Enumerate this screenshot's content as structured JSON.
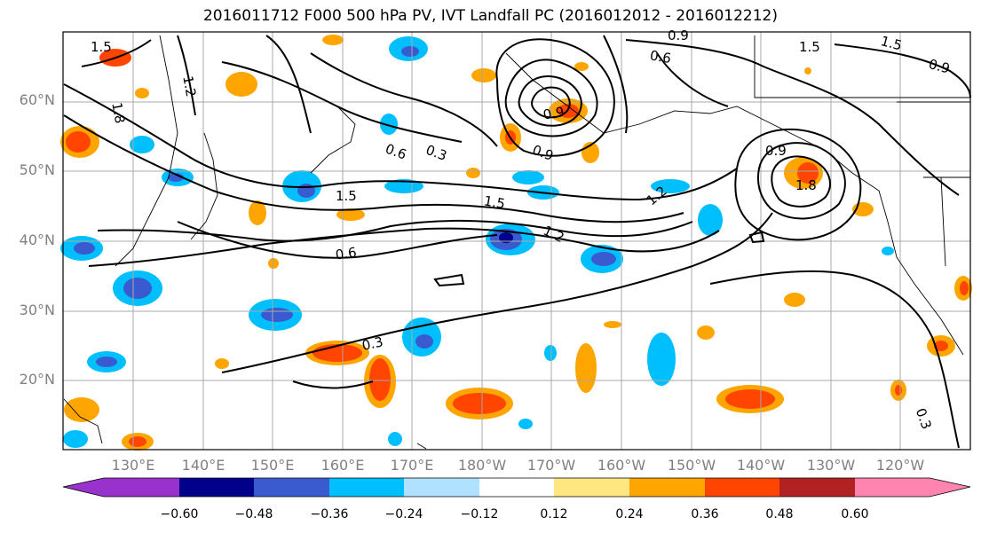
{
  "title": "2016011712 F000 500 hPa PV, IVT Landfall PC (2016012012 - 2016012212)",
  "lat_labels": [
    "60°N",
    "50°N",
    "40°N",
    "30°N",
    "20°N"
  ],
  "lon_labels": [
    "130°E",
    "140°E",
    "150°E",
    "160°E",
    "170°E",
    "180°W",
    "170°W",
    "160°W",
    "150°W",
    "140°W",
    "130°W",
    "120°W"
  ],
  "contour_labels": [
    "1.5",
    "1.2",
    "1.8",
    "0.6",
    "0.3",
    "1.5",
    "1.5",
    "1.2",
    "0.6",
    "0.3",
    "0.9",
    "0.6",
    "0.9",
    "0.9",
    "1.5",
    "0.9",
    "1.2",
    "0.9",
    "1.8",
    "1.5",
    "0.3"
  ],
  "colorbar": {
    "ticks": [
      "−0.60",
      "−0.48",
      "−0.36",
      "−0.24",
      "−0.12",
      "0.12",
      "0.24",
      "0.36",
      "0.48",
      "0.60"
    ],
    "colors": [
      "#9932cc",
      "#00008b",
      "#3a5bd0",
      "#00bfff",
      "#b0e2ff",
      "#ffffff",
      "#ffe680",
      "#ffa500",
      "#ff4500",
      "#b22222",
      "#ff85b0"
    ]
  }
}
